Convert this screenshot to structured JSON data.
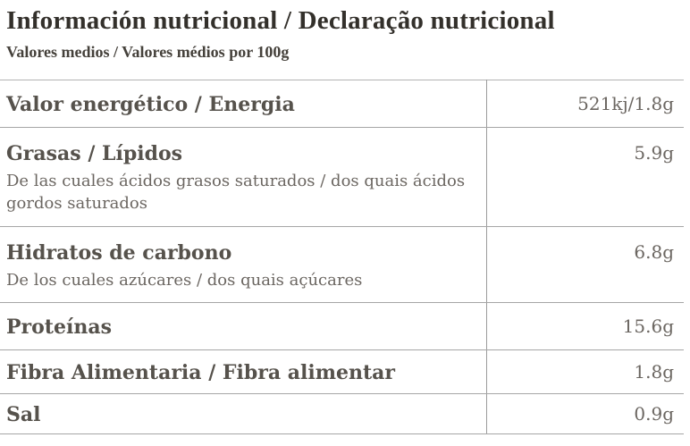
{
  "header": {
    "title": "Información nutricional / Declaração nutricional",
    "subtitle": "Valores medios / Valores médios por 100g"
  },
  "table": {
    "rows": [
      {
        "label": "Valor energético / Energia",
        "sub": "",
        "value": "521kj/1.8g"
      },
      {
        "label": "Grasas / Lípidos",
        "sub": "De las cuales ácidos grasos saturados / dos quais ácidos gordos saturados",
        "value": "5.9g"
      },
      {
        "label": "Hidratos de carbono",
        "sub": "De los cuales azúcares / dos quais açúcares",
        "value": "6.8g"
      },
      {
        "label": "Proteínas",
        "sub": "",
        "value": "15.6g"
      },
      {
        "label": "Fibra Alimentaria / Fibra alimentar",
        "sub": "",
        "value": "1.8g"
      },
      {
        "label": "Sal",
        "sub": "",
        "value": "0.9g"
      }
    ]
  },
  "colors": {
    "title_text": "#33302b",
    "label_text": "#56524c",
    "secondary_text": "#6b6661",
    "row_border": "#a6a6a6",
    "column_divider": "#9b9b9b"
  }
}
